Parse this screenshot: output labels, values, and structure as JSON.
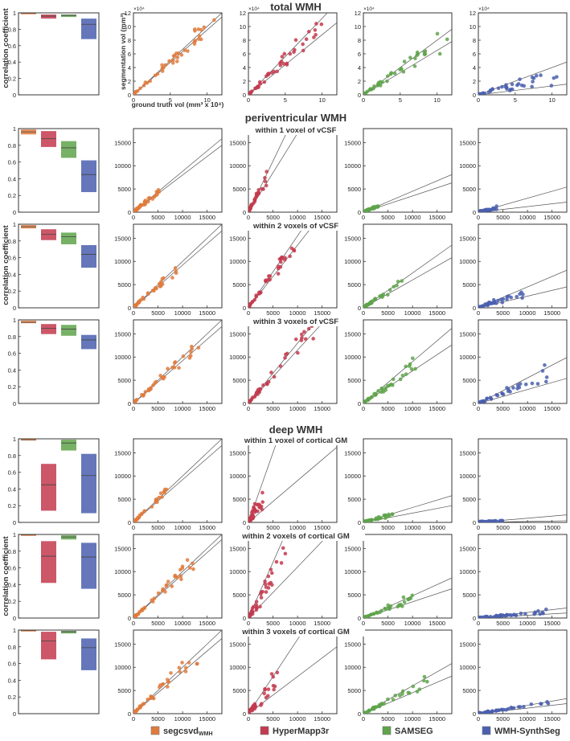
{
  "section_titles": [
    "total WMH",
    "periventricular WMH",
    "deep WMH"
  ],
  "row_labels": [
    "within 1 voxel of vCSF",
    "within 2 voxels of vCSF",
    "within 3 voxels of vCSF",
    "within 1 voxel of cortical GM",
    "within 2 voxels of cortical GM",
    "within 3 voxels of cortical GM"
  ],
  "axis_labels": {
    "corr_y": "correlation coefficient",
    "seg_y": "segmentation vol (mm³)",
    "gt_x": "ground truth vol (mm³ x 10⁴)",
    "exponent": "×10⁴"
  },
  "legend": [
    {
      "name": "segcsvd",
      "sub": "WMH",
      "color": "#e07a3c"
    },
    {
      "name": "HyperMapp3r",
      "sub": "",
      "color": "#c33a4e"
    },
    {
      "name": "SAMSEG",
      "sub": "",
      "color": "#5ea34a"
    },
    {
      "name": "WMH-SynthSeg",
      "sub": "",
      "color": "#4a5fae"
    }
  ],
  "chart_data": {
    "type": "panel-grid",
    "methods": [
      "segcsvd_WMH",
      "HyperMapp3r",
      "SAMSEG",
      "WMH-SynthSeg"
    ],
    "colors": [
      "#e07a3c",
      "#c33a4e",
      "#5ea34a",
      "#4a5fae"
    ],
    "rows": [
      {
        "id": "total",
        "section": "total WMH",
        "corr_ylim": [
          0,
          1
        ],
        "corr_ticks": [
          0,
          0.2,
          0.4,
          0.6,
          0.8,
          1
        ],
        "corr_boxes": [
          [
            0.99,
            1.0
          ],
          [
            0.93,
            0.98
          ],
          [
            0.95,
            0.98
          ],
          [
            0.68,
            0.93
          ]
        ],
        "corr_medians": [
          0.995,
          0.96,
          0.97,
          0.86
        ],
        "scatter_lim": [
          0,
          12
        ],
        "scatter_ticks": [
          0,
          2,
          4,
          6,
          8,
          10,
          12
        ],
        "scatter_xticks": [
          0,
          5,
          10
        ],
        "units": "x10^4 mm3",
        "slopes": [
          [
            0.95,
            1.0
          ],
          [
            0.88,
            1.12
          ],
          [
            0.65,
            0.8
          ],
          [
            0.13,
            0.4
          ]
        ],
        "max_x": [
          11,
          10,
          11.5,
          11
        ]
      },
      {
        "id": "pv1",
        "section": "periventricular WMH",
        "label": "within 1 voxel of vCSF",
        "corr_ylim": [
          0,
          1
        ],
        "corr_ticks": [
          0,
          0.2,
          0.4,
          0.6,
          0.8,
          1
        ],
        "corr_boxes": [
          [
            0.93,
            0.99
          ],
          [
            0.78,
            0.97
          ],
          [
            0.65,
            0.85
          ],
          [
            0.24,
            0.62
          ]
        ],
        "corr_medians": [
          0.96,
          0.88,
          0.77,
          0.45
        ],
        "scatter_lim": [
          0,
          18000
        ],
        "scatter_ticks": [
          0,
          5000,
          10000,
          15000
        ],
        "scatter_xticks": [
          0,
          5000,
          10000,
          15000
        ],
        "units": "mm3",
        "slopes": [
          [
            0.8,
            0.88
          ],
          [
            1.7,
            2.2
          ],
          [
            0.35,
            0.45
          ],
          [
            0.12,
            0.3
          ]
        ],
        "max_x": [
          5500,
          4000,
          3000,
          3800
        ]
      },
      {
        "id": "pv2",
        "label": "within 2 voxels of vCSF",
        "corr_ylim": [
          0,
          1
        ],
        "corr_ticks": [
          0,
          0.2,
          0.4,
          0.6,
          0.8,
          1
        ],
        "corr_boxes": [
          [
            0.95,
            0.99
          ],
          [
            0.81,
            0.94
          ],
          [
            0.76,
            0.9
          ],
          [
            0.48,
            0.75
          ]
        ],
        "corr_medians": [
          0.97,
          0.88,
          0.85,
          0.64
        ],
        "scatter_lim": [
          0,
          18000
        ],
        "scatter_ticks": [
          0,
          5000,
          10000,
          15000
        ],
        "scatter_xticks": [
          0,
          5000,
          10000,
          15000
        ],
        "units": "mm3",
        "slopes": [
          [
            0.92,
            1.0
          ],
          [
            1.35,
            1.55
          ],
          [
            0.6,
            0.75
          ],
          [
            0.25,
            0.45
          ]
        ],
        "max_x": [
          9000,
          9500,
          8000,
          9500
        ]
      },
      {
        "id": "pv3",
        "label": "within 3 voxels of vCSF",
        "corr_ylim": [
          0,
          1
        ],
        "corr_ticks": [
          0,
          0.2,
          0.4,
          0.6,
          0.8,
          1
        ],
        "corr_boxes": [
          [
            0.96,
            0.99
          ],
          [
            0.83,
            0.95
          ],
          [
            0.81,
            0.94
          ],
          [
            0.65,
            0.82
          ]
        ],
        "corr_medians": [
          0.97,
          0.9,
          0.89,
          0.76
        ],
        "scatter_lim": [
          0,
          18000
        ],
        "scatter_ticks": [
          0,
          5000,
          10000,
          15000
        ],
        "scatter_xticks": [
          0,
          5000,
          10000,
          15000
        ],
        "units": "mm3",
        "slopes": [
          [
            0.92,
            1.0
          ],
          [
            1.15,
            1.3
          ],
          [
            0.7,
            0.9
          ],
          [
            0.3,
            0.55
          ]
        ],
        "max_x": [
          14000,
          14000,
          11000,
          14000
        ]
      },
      {
        "id": "dp1",
        "section": "deep WMH",
        "label": "within 1 voxel of cortical GM",
        "corr_ylim": [
          0,
          1
        ],
        "corr_ticks": [
          0,
          0.2,
          0.4,
          0.6,
          0.8,
          1
        ],
        "corr_boxes": [
          [
            0.98,
            1.0
          ],
          [
            0.14,
            0.7
          ],
          [
            0.86,
            0.99
          ],
          [
            0.11,
            0.82
          ]
        ],
        "corr_medians": [
          0.99,
          0.45,
          0.95,
          0.56
        ],
        "scatter_lim": [
          0,
          18000
        ],
        "scatter_ticks": [
          0,
          5000,
          10000,
          15000
        ],
        "scatter_xticks": [
          0,
          5000,
          10000,
          15000
        ],
        "units": "mm3",
        "slopes": [
          [
            0.92,
            1.0
          ],
          [
            0.9,
            3.0
          ],
          [
            0.2,
            0.32
          ],
          [
            0.02,
            0.09
          ]
        ],
        "max_x": [
          7000,
          3000,
          6000,
          5000
        ]
      },
      {
        "id": "dp2",
        "label": "within 2 voxels of cortical GM",
        "corr_ylim": [
          0,
          1
        ],
        "corr_ticks": [
          0,
          0.2,
          0.4,
          0.6,
          0.8,
          1
        ],
        "corr_boxes": [
          [
            0.99,
            1.0
          ],
          [
            0.42,
            0.92
          ],
          [
            0.94,
            0.99
          ],
          [
            0.35,
            0.9
          ]
        ],
        "corr_medians": [
          0.995,
          0.74,
          0.97,
          0.73
        ],
        "scatter_lim": [
          0,
          18000
        ],
        "scatter_ticks": [
          0,
          5000,
          10000,
          15000
        ],
        "scatter_xticks": [
          0,
          5000,
          10000,
          15000
        ],
        "units": "mm3",
        "slopes": [
          [
            0.94,
            1.0
          ],
          [
            1.1,
            2.4
          ],
          [
            0.35,
            0.48
          ],
          [
            0.06,
            0.12
          ]
        ],
        "max_x": [
          13000,
          8000,
          11000,
          14000
        ]
      },
      {
        "id": "dp3",
        "label": "within 3 voxels of cortical GM",
        "corr_ylim": [
          0,
          1
        ],
        "corr_ticks": [
          0,
          0.2,
          0.4,
          0.6,
          0.8,
          1
        ],
        "corr_boxes": [
          [
            0.99,
            1.0
          ],
          [
            0.65,
            0.98
          ],
          [
            0.96,
            0.99
          ],
          [
            0.52,
            0.9
          ]
        ],
        "corr_medians": [
          0.995,
          0.87,
          0.98,
          0.79
        ],
        "scatter_lim": [
          0,
          18000
        ],
        "scatter_ticks": [
          0,
          5000,
          10000,
          15000
        ],
        "scatter_xticks": [
          0,
          5000,
          10000,
          15000
        ],
        "units": "mm3",
        "slopes": [
          [
            0.9,
            1.0
          ],
          [
            0.8,
            1.6
          ],
          [
            0.45,
            0.6
          ],
          [
            0.12,
            0.18
          ]
        ],
        "max_x": [
          13500,
          6000,
          13500,
          14500
        ]
      }
    ]
  }
}
